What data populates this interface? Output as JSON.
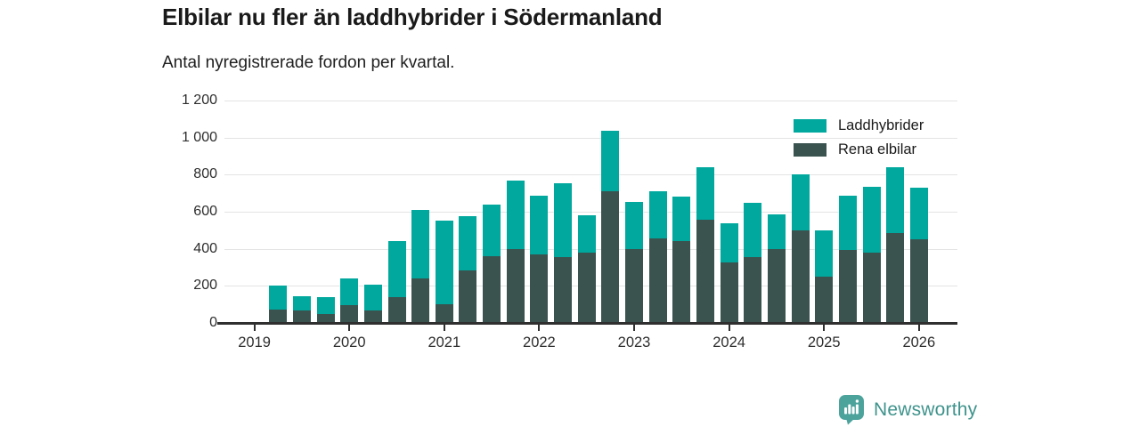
{
  "header": {
    "title": "Elbilar nu fler än laddhybrider i Södermanland",
    "subtitle": "Antal nyregistrerade fordon per kvartal."
  },
  "colors": {
    "laddhybrider": "#00a89d",
    "rena_elbilar": "#3a534f",
    "gridline": "#e4e4e4",
    "axis": "#2f2f2f",
    "label_text": "#2e2e2e",
    "brand_teal": "#4ba39c"
  },
  "legend": {
    "items": [
      {
        "label": "Laddhybrider",
        "key": "laddhybrider"
      },
      {
        "label": "Rena elbilar",
        "key": "rena-elbilar"
      }
    ]
  },
  "chart_data": {
    "type": "bar",
    "stacked": true,
    "title": "Elbilar nu fler än laddhybrider i Södermanland",
    "subtitle": "Antal nyregistrerade fordon per kvartal.",
    "xlabel": "",
    "ylabel": "",
    "ylim": [
      0,
      1200
    ],
    "grid": "horizontal",
    "legend_position": "top-right",
    "categories": [
      "2019-Q2",
      "2019-Q3",
      "2019-Q4",
      "2020-Q1",
      "2020-Q2",
      "2020-Q3",
      "2020-Q4",
      "2021-Q1",
      "2021-Q2",
      "2021-Q3",
      "2021-Q4",
      "2022-Q1",
      "2022-Q2",
      "2022-Q3",
      "2022-Q4",
      "2023-Q1",
      "2023-Q2",
      "2023-Q3",
      "2023-Q4",
      "2024-Q1",
      "2024-Q2",
      "2024-Q3",
      "2024-Q4",
      "2025-Q1",
      "2025-Q2",
      "2025-Q3",
      "2025-Q4",
      "2026-Q1"
    ],
    "series": [
      {
        "name": "Laddhybrider",
        "key": "laddhybrider",
        "color": "#00a89d",
        "values": [
          130,
          80,
          90,
          145,
          140,
          300,
          370,
          450,
          290,
          280,
          370,
          315,
          400,
          200,
          325,
          255,
          255,
          240,
          285,
          215,
          295,
          185,
          300,
          250,
          290,
          355,
          355,
          280
        ]
      },
      {
        "name": "Rena elbilar",
        "key": "rena-elbilar",
        "color": "#3a534f",
        "values": [
          70,
          65,
          50,
          95,
          65,
          140,
          240,
          100,
          285,
          360,
          400,
          370,
          355,
          380,
          710,
          400,
          455,
          440,
          555,
          325,
          355,
          400,
          500,
          250,
          395,
          380,
          485,
          450
        ]
      }
    ],
    "stack_order": [
      "rena-elbilar",
      "laddhybrider"
    ],
    "y_ticks": [
      0,
      200,
      400,
      600,
      800,
      1000,
      1200
    ],
    "y_tick_labels": [
      "0",
      "200",
      "400",
      "600",
      "800",
      "1 000",
      "1 200"
    ],
    "x_tick_labels": [
      "2019",
      "2020",
      "2021",
      "2022",
      "2023",
      "2024",
      "2025",
      "2026"
    ]
  },
  "footer": {
    "brand": "Newsworthy"
  }
}
